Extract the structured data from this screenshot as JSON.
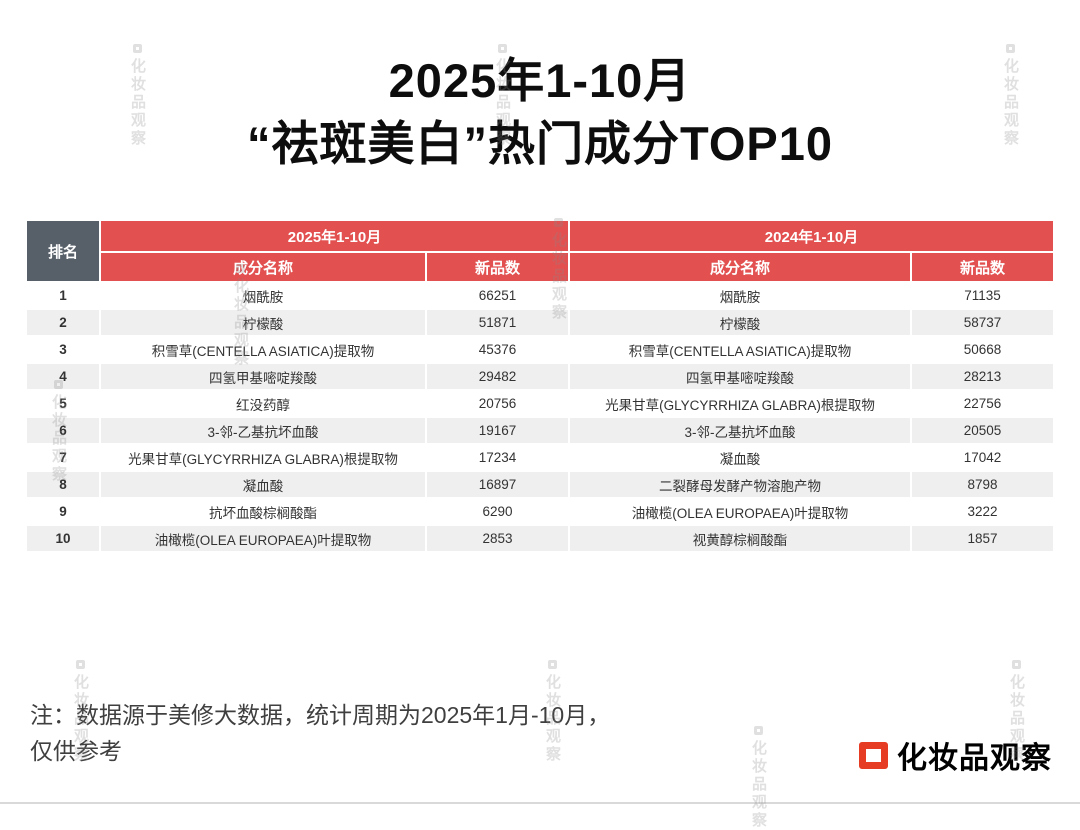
{
  "title": {
    "line1": "2025年1-10月",
    "line2": "“祛斑美白”热门成分TOP10"
  },
  "table": {
    "rank_header": "排名",
    "period_2025": "2025年1-10月",
    "period_2024": "2024年1-10月",
    "col_ingredient": "成分名称",
    "col_new_products": "新品数"
  },
  "chart_data": {
    "type": "table",
    "title": "2025年1-10月 “祛斑美白”热门成分TOP10",
    "columns": [
      "排名",
      "成分名称 (2025年1-10月)",
      "新品数 (2025年1-10月)",
      "成分名称 (2024年1-10月)",
      "新品数 (2024年1-10月)"
    ],
    "rows": [
      [
        "1",
        "烟酰胺",
        "66251",
        "烟酰胺",
        "71135"
      ],
      [
        "2",
        "柠檬酸",
        "51871",
        "柠檬酸",
        "58737"
      ],
      [
        "3",
        "积雪草(CENTELLA ASIATICA)提取物",
        "45376",
        "积雪草(CENTELLA ASIATICA)提取物",
        "50668"
      ],
      [
        "4",
        "四氢甲基嘧啶羧酸",
        "29482",
        "四氢甲基嘧啶羧酸",
        "28213"
      ],
      [
        "5",
        "红没药醇",
        "20756",
        "光果甘草(GLYCYRRHIZA GLABRA)根提取物",
        "22756"
      ],
      [
        "6",
        "3-邻-乙基抗坏血酸",
        "19167",
        "3-邻-乙基抗坏血酸",
        "20505"
      ],
      [
        "7",
        "光果甘草(GLYCYRRHIZA GLABRA)根提取物",
        "17234",
        "凝血酸",
        "17042"
      ],
      [
        "8",
        "凝血酸",
        "16897",
        "二裂酵母发酵产物溶胞产物",
        "8798"
      ],
      [
        "9",
        "抗坏血酸棕榈酸酯",
        "6290",
        "油橄榄(OLEA EUROPAEA)叶提取物",
        "3222"
      ],
      [
        "10",
        "油橄榄(OLEA EUROPAEA)叶提取物",
        "2853",
        "视黄醇棕榈酸酯",
        "1857"
      ]
    ]
  },
  "note": {
    "line1": "注：数据源于美修大数据，统计周期为2025年1月-10月，",
    "line2": "仅供参考"
  },
  "logo": {
    "text": "化妆品观察"
  },
  "watermark": {
    "text": "化妆品观察"
  },
  "colors": {
    "header_red": "#E25050",
    "rank_gray": "#575F69",
    "row_alt_gray": "#EFEFEF",
    "logo_red": "#E63C23"
  }
}
